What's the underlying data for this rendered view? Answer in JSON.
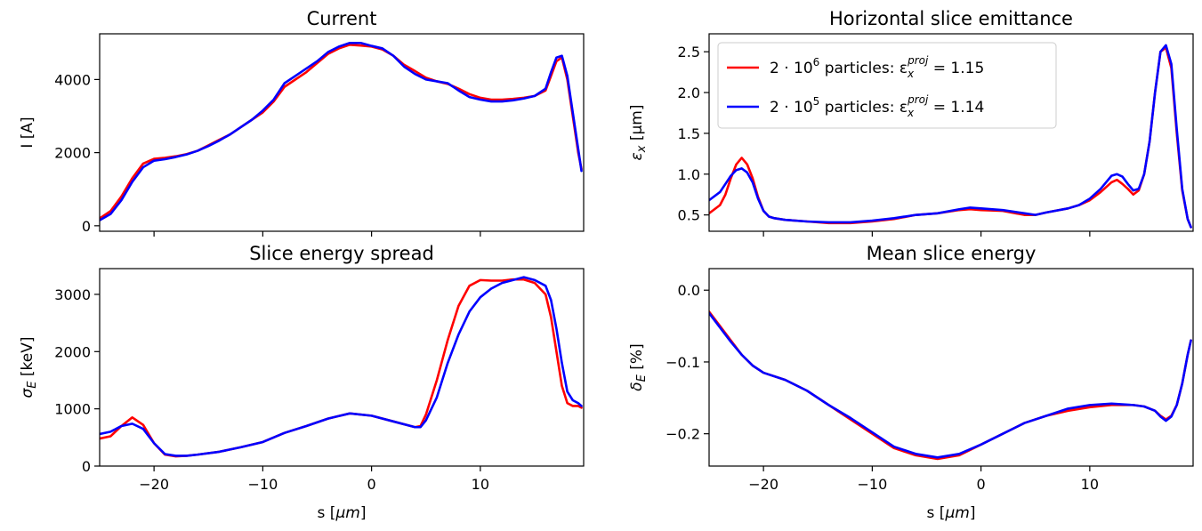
{
  "chart_data": [
    {
      "type": "line",
      "title": "Current",
      "xlabel": "",
      "ylabel": "I [A]",
      "xlim": [
        -25,
        19.5
      ],
      "ylim": [
        -150,
        5250
      ],
      "xticks": [
        -20,
        -10,
        0,
        10
      ],
      "xtick_labels": [
        "",
        "",
        "",
        ""
      ],
      "yticks": [
        0,
        2000,
        4000
      ],
      "ytick_labels": [
        "0",
        "2000",
        "4000"
      ],
      "series": [
        {
          "color": "#ff0000",
          "x": [
            -25,
            -24,
            -23,
            -22,
            -21,
            -20,
            -19,
            -18,
            -17,
            -16,
            -15,
            -14,
            -13,
            -12,
            -11,
            -10,
            -9,
            -8,
            -7,
            -6,
            -5,
            -4,
            -3,
            -2,
            -1,
            0,
            1,
            2,
            3,
            4,
            5,
            6,
            7,
            8,
            9,
            10,
            11,
            12,
            13,
            14,
            15,
            16,
            16.5,
            17,
            17.5,
            18,
            18.5,
            19,
            19.3
          ],
          "y": [
            200,
            400,
            800,
            1300,
            1700,
            1830,
            1860,
            1900,
            1960,
            2050,
            2200,
            2350,
            2500,
            2700,
            2900,
            3100,
            3400,
            3800,
            4000,
            4200,
            4450,
            4700,
            4850,
            4950,
            4930,
            4900,
            4820,
            4650,
            4400,
            4230,
            4050,
            3950,
            3880,
            3750,
            3600,
            3500,
            3450,
            3450,
            3470,
            3500,
            3550,
            3700,
            4100,
            4500,
            4600,
            4000,
            3000,
            2000,
            1550
          ]
        },
        {
          "color": "#0000ff",
          "x": [
            -25,
            -24,
            -23,
            -22,
            -21,
            -20,
            -19,
            -18,
            -17,
            -16,
            -15,
            -14,
            -13,
            -12,
            -11,
            -10,
            -9,
            -8,
            -7,
            -6,
            -5,
            -4,
            -3,
            -2,
            -1,
            0,
            1,
            2,
            3,
            4,
            5,
            6,
            7,
            8,
            9,
            10,
            11,
            12,
            13,
            14,
            15,
            16,
            16.5,
            17,
            17.5,
            18,
            18.5,
            19,
            19.3
          ],
          "y": [
            150,
            320,
            700,
            1200,
            1600,
            1780,
            1820,
            1880,
            1950,
            2050,
            2180,
            2330,
            2500,
            2700,
            2900,
            3150,
            3450,
            3900,
            4100,
            4300,
            4500,
            4750,
            4900,
            5000,
            5000,
            4920,
            4850,
            4650,
            4350,
            4150,
            4000,
            3950,
            3900,
            3700,
            3520,
            3450,
            3400,
            3400,
            3430,
            3480,
            3550,
            3750,
            4200,
            4600,
            4650,
            4100,
            3100,
            2100,
            1500
          ]
        }
      ]
    },
    {
      "type": "line",
      "title": "Horizontal slice emittance",
      "xlabel": "",
      "ylabel": "εx [μm]",
      "xlim": [
        -25,
        19.5
      ],
      "ylim": [
        0.3,
        2.72
      ],
      "xticks": [
        -20,
        -10,
        0,
        10
      ],
      "xtick_labels": [
        "",
        "",
        "",
        ""
      ],
      "yticks": [
        0.5,
        1.0,
        1.5,
        2.0,
        2.5
      ],
      "ytick_labels": [
        "0.5",
        "1.0",
        "1.5",
        "2.0",
        "2.5"
      ],
      "legend": {
        "location": "upper-left",
        "entries": [
          {
            "prefix": "2 · 10",
            "exp": "6",
            "mid": " particles: ε",
            "sub": "x",
            "sup": "proj",
            "suffix": " = 1.15",
            "color": "#ff0000"
          },
          {
            "prefix": "2 · 10",
            "exp": "5",
            "mid": " particles: ε",
            "sub": "x",
            "sup": "proj",
            "suffix": " = 1.14",
            "color": "#0000ff"
          }
        ]
      },
      "series": [
        {
          "color": "#ff0000",
          "x": [
            -25,
            -24,
            -23.5,
            -23,
            -22.5,
            -22,
            -21.5,
            -21,
            -20.5,
            -20,
            -19.5,
            -19,
            -18,
            -16,
            -14,
            -12,
            -10,
            -8,
            -6,
            -4,
            -2,
            -1,
            0,
            2,
            4,
            5,
            6,
            8,
            9,
            10,
            11,
            12,
            12.5,
            13,
            13.5,
            14,
            14.5,
            15,
            15.5,
            16,
            16.5,
            17,
            17.5,
            18,
            18.5,
            19,
            19.3
          ],
          "y": [
            0.52,
            0.62,
            0.75,
            0.95,
            1.12,
            1.2,
            1.12,
            0.95,
            0.72,
            0.55,
            0.48,
            0.46,
            0.44,
            0.42,
            0.4,
            0.4,
            0.42,
            0.45,
            0.5,
            0.52,
            0.56,
            0.57,
            0.56,
            0.55,
            0.5,
            0.5,
            0.53,
            0.58,
            0.62,
            0.68,
            0.78,
            0.9,
            0.93,
            0.88,
            0.82,
            0.75,
            0.8,
            1.0,
            1.4,
            2.0,
            2.5,
            2.55,
            2.3,
            1.5,
            0.8,
            0.45,
            0.35
          ]
        },
        {
          "color": "#0000ff",
          "x": [
            -25,
            -24,
            -23.5,
            -23,
            -22.5,
            -22,
            -21.5,
            -21,
            -20.5,
            -20,
            -19.5,
            -19,
            -18,
            -16,
            -14,
            -12,
            -10,
            -8,
            -6,
            -4,
            -2,
            -1,
            0,
            2,
            4,
            5,
            6,
            8,
            9,
            10,
            11,
            12,
            12.5,
            13,
            13.5,
            14,
            14.5,
            15,
            15.5,
            16,
            16.5,
            17,
            17.5,
            18,
            18.5,
            19,
            19.3
          ],
          "y": [
            0.68,
            0.78,
            0.88,
            0.98,
            1.05,
            1.07,
            1.02,
            0.9,
            0.7,
            0.55,
            0.48,
            0.46,
            0.44,
            0.42,
            0.41,
            0.41,
            0.43,
            0.46,
            0.5,
            0.52,
            0.57,
            0.59,
            0.58,
            0.56,
            0.52,
            0.5,
            0.53,
            0.58,
            0.62,
            0.7,
            0.82,
            0.98,
            1.0,
            0.97,
            0.88,
            0.8,
            0.82,
            1.0,
            1.4,
            2.0,
            2.5,
            2.58,
            2.35,
            1.55,
            0.82,
            0.45,
            0.35
          ]
        }
      ]
    },
    {
      "type": "line",
      "title": "Slice energy spread",
      "xlabel": "s [μm]",
      "ylabel": "σE [keV]",
      "xlim": [
        -25,
        19.5
      ],
      "ylim": [
        0,
        3450
      ],
      "xticks": [
        -20,
        -10,
        0,
        10
      ],
      "xtick_labels": [
        "−20",
        "−10",
        "0",
        "10"
      ],
      "yticks": [
        0,
        1000,
        2000,
        3000
      ],
      "ytick_labels": [
        "0",
        "1000",
        "2000",
        "3000"
      ],
      "series": [
        {
          "color": "#ff0000",
          "x": [
            -25,
            -24,
            -23,
            -22,
            -21,
            -20,
            -19,
            -18,
            -17,
            -16,
            -14,
            -12,
            -10,
            -8,
            -6,
            -4,
            -2,
            0,
            2,
            4,
            4.5,
            5,
            6,
            7,
            8,
            9,
            10,
            11,
            12,
            13,
            14,
            15,
            16,
            16.5,
            17,
            17.5,
            18,
            18.5,
            19,
            19.3
          ],
          "y": [
            480,
            520,
            700,
            850,
            720,
            400,
            200,
            170,
            180,
            200,
            250,
            330,
            420,
            580,
            700,
            830,
            920,
            880,
            780,
            680,
            700,
            900,
            1500,
            2200,
            2800,
            3150,
            3250,
            3240,
            3240,
            3260,
            3260,
            3200,
            3000,
            2600,
            2000,
            1400,
            1100,
            1050,
            1050,
            1020
          ]
        },
        {
          "color": "#0000ff",
          "x": [
            -25,
            -24,
            -23,
            -22,
            -21,
            -20,
            -19,
            -18,
            -17,
            -16,
            -14,
            -12,
            -10,
            -8,
            -6,
            -4,
            -2,
            0,
            2,
            4,
            4.5,
            5,
            6,
            7,
            8,
            9,
            10,
            11,
            12,
            13,
            14,
            15,
            16,
            16.5,
            17,
            17.5,
            18,
            18.5,
            19,
            19.3
          ],
          "y": [
            560,
            600,
            700,
            740,
            650,
            400,
            210,
            180,
            180,
            200,
            250,
            330,
            420,
            580,
            700,
            830,
            920,
            880,
            780,
            680,
            680,
            800,
            1200,
            1800,
            2300,
            2700,
            2950,
            3100,
            3200,
            3250,
            3300,
            3250,
            3150,
            2900,
            2400,
            1800,
            1300,
            1150,
            1100,
            1050
          ]
        }
      ]
    },
    {
      "type": "line",
      "title": "Mean slice energy",
      "xlabel": "s [μm]",
      "ylabel": "δE [%]",
      "xlim": [
        -25,
        19.5
      ],
      "ylim": [
        -0.245,
        0.03
      ],
      "xticks": [
        -20,
        -10,
        0,
        10
      ],
      "xtick_labels": [
        "−20",
        "−10",
        "0",
        "10"
      ],
      "yticks": [
        0.0,
        -0.1,
        -0.2
      ],
      "ytick_labels": [
        "0.0",
        "−0.1",
        "−0.2"
      ],
      "series": [
        {
          "color": "#ff0000",
          "x": [
            -25,
            -24,
            -23,
            -22,
            -21,
            -20,
            -18,
            -16,
            -14,
            -12,
            -10,
            -8,
            -6,
            -4,
            -2,
            0,
            2,
            4,
            6,
            8,
            10,
            12,
            14,
            15,
            16,
            16.5,
            17,
            17.5,
            18,
            18.5,
            19,
            19.3
          ],
          "y": [
            -0.03,
            -0.05,
            -0.07,
            -0.09,
            -0.105,
            -0.115,
            -0.125,
            -0.14,
            -0.16,
            -0.18,
            -0.2,
            -0.22,
            -0.23,
            -0.235,
            -0.23,
            -0.215,
            -0.2,
            -0.185,
            -0.175,
            -0.168,
            -0.163,
            -0.16,
            -0.16,
            -0.162,
            -0.168,
            -0.175,
            -0.18,
            -0.175,
            -0.16,
            -0.13,
            -0.09,
            -0.07
          ]
        },
        {
          "color": "#0000ff",
          "x": [
            -25,
            -24,
            -23,
            -22,
            -21,
            -20,
            -18,
            -16,
            -14,
            -12,
            -10,
            -8,
            -6,
            -4,
            -2,
            0,
            2,
            4,
            6,
            8,
            10,
            12,
            14,
            15,
            16,
            16.5,
            17,
            17.5,
            18,
            18.5,
            19,
            19.3
          ],
          "y": [
            -0.032,
            -0.052,
            -0.072,
            -0.09,
            -0.105,
            -0.115,
            -0.125,
            -0.14,
            -0.16,
            -0.178,
            -0.198,
            -0.218,
            -0.228,
            -0.233,
            -0.228,
            -0.215,
            -0.2,
            -0.185,
            -0.175,
            -0.165,
            -0.16,
            -0.158,
            -0.16,
            -0.162,
            -0.168,
            -0.176,
            -0.182,
            -0.176,
            -0.16,
            -0.13,
            -0.09,
            -0.07
          ]
        }
      ]
    }
  ]
}
